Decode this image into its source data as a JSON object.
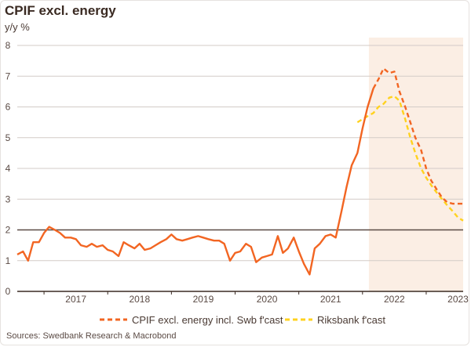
{
  "chart_data": {
    "type": "line",
    "title": "CPIF excl. energy",
    "ylabel": "y/y %",
    "ylim": [
      0,
      8
    ],
    "yticks": [
      "0",
      "1",
      "2",
      "3",
      "4",
      "5",
      "6",
      "7",
      "8"
    ],
    "xticks": [
      "2017",
      "2018",
      "2019",
      "2020",
      "2021",
      "2022",
      "2023"
    ],
    "xlim": [
      2016.58,
      2023.58
    ],
    "forecast_shading_start": 2022.1,
    "reference_line": 2,
    "series": [
      {
        "name": "CPIF excl. energy incl. Swb  f'cast",
        "color": "#f26522",
        "actual": [
          [
            2016.58,
            1.2
          ],
          [
            2016.67,
            1.3
          ],
          [
            2016.75,
            1.0
          ],
          [
            2016.83,
            1.6
          ],
          [
            2016.92,
            1.6
          ],
          [
            2017.0,
            1.9
          ],
          [
            2017.08,
            2.1
          ],
          [
            2017.17,
            2.0
          ],
          [
            2017.25,
            1.9
          ],
          [
            2017.33,
            1.75
          ],
          [
            2017.42,
            1.75
          ],
          [
            2017.5,
            1.7
          ],
          [
            2017.58,
            1.5
          ],
          [
            2017.67,
            1.45
          ],
          [
            2017.75,
            1.55
          ],
          [
            2017.83,
            1.45
          ],
          [
            2017.92,
            1.5
          ],
          [
            2018.0,
            1.35
          ],
          [
            2018.08,
            1.3
          ],
          [
            2018.17,
            1.15
          ],
          [
            2018.25,
            1.6
          ],
          [
            2018.33,
            1.5
          ],
          [
            2018.42,
            1.4
          ],
          [
            2018.5,
            1.55
          ],
          [
            2018.58,
            1.35
          ],
          [
            2018.67,
            1.4
          ],
          [
            2018.75,
            1.5
          ],
          [
            2018.83,
            1.6
          ],
          [
            2018.92,
            1.7
          ],
          [
            2019.0,
            1.85
          ],
          [
            2019.08,
            1.7
          ],
          [
            2019.17,
            1.65
          ],
          [
            2019.25,
            1.7
          ],
          [
            2019.33,
            1.75
          ],
          [
            2019.42,
            1.8
          ],
          [
            2019.5,
            1.75
          ],
          [
            2019.58,
            1.7
          ],
          [
            2019.67,
            1.65
          ],
          [
            2019.75,
            1.65
          ],
          [
            2019.83,
            1.55
          ],
          [
            2019.92,
            1.0
          ],
          [
            2020.0,
            1.25
          ],
          [
            2020.08,
            1.3
          ],
          [
            2020.17,
            1.55
          ],
          [
            2020.25,
            1.45
          ],
          [
            2020.33,
            0.95
          ],
          [
            2020.42,
            1.1
          ],
          [
            2020.5,
            1.15
          ],
          [
            2020.58,
            1.2
          ],
          [
            2020.67,
            1.8
          ],
          [
            2020.75,
            1.25
          ],
          [
            2020.83,
            1.4
          ],
          [
            2020.92,
            1.75
          ],
          [
            2021.0,
            1.3
          ],
          [
            2021.08,
            0.9
          ],
          [
            2021.17,
            0.55
          ],
          [
            2021.25,
            1.4
          ],
          [
            2021.33,
            1.55
          ],
          [
            2021.42,
            1.8
          ],
          [
            2021.5,
            1.85
          ],
          [
            2021.58,
            1.75
          ],
          [
            2021.67,
            2.6
          ],
          [
            2021.75,
            3.4
          ],
          [
            2021.83,
            4.1
          ],
          [
            2021.92,
            4.5
          ],
          [
            2022.0,
            5.3
          ],
          [
            2022.08,
            6.0
          ],
          [
            2022.17,
            6.6
          ]
        ],
        "forecast": [
          [
            2022.17,
            6.6
          ],
          [
            2022.25,
            6.9
          ],
          [
            2022.33,
            7.25
          ],
          [
            2022.42,
            7.1
          ],
          [
            2022.5,
            7.15
          ],
          [
            2022.58,
            6.5
          ],
          [
            2022.67,
            6.0
          ],
          [
            2022.75,
            5.5
          ],
          [
            2022.83,
            5.0
          ],
          [
            2022.92,
            4.6
          ],
          [
            2023.0,
            4.0
          ],
          [
            2023.08,
            3.6
          ],
          [
            2023.17,
            3.3
          ],
          [
            2023.25,
            3.05
          ],
          [
            2023.33,
            2.9
          ],
          [
            2023.42,
            2.85
          ],
          [
            2023.5,
            2.85
          ],
          [
            2023.58,
            2.85
          ]
        ]
      },
      {
        "name": "Riksbank f'cast",
        "color": "#ffd21f",
        "forecast": [
          [
            2021.92,
            5.5
          ],
          [
            2022.0,
            5.6
          ],
          [
            2022.08,
            5.7
          ],
          [
            2022.17,
            5.8
          ],
          [
            2022.25,
            6.0
          ],
          [
            2022.33,
            6.1
          ],
          [
            2022.42,
            6.3
          ],
          [
            2022.5,
            6.35
          ],
          [
            2022.58,
            6.2
          ],
          [
            2022.67,
            5.6
          ],
          [
            2022.75,
            5.0
          ],
          [
            2022.83,
            4.5
          ],
          [
            2022.92,
            4.0
          ],
          [
            2023.0,
            3.7
          ],
          [
            2023.08,
            3.45
          ],
          [
            2023.17,
            3.2
          ],
          [
            2023.25,
            3.0
          ],
          [
            2023.33,
            2.8
          ],
          [
            2023.42,
            2.6
          ],
          [
            2023.5,
            2.4
          ],
          [
            2023.58,
            2.3
          ]
        ]
      }
    ]
  },
  "source": "Sources: Swedbank Research & Macrobond"
}
